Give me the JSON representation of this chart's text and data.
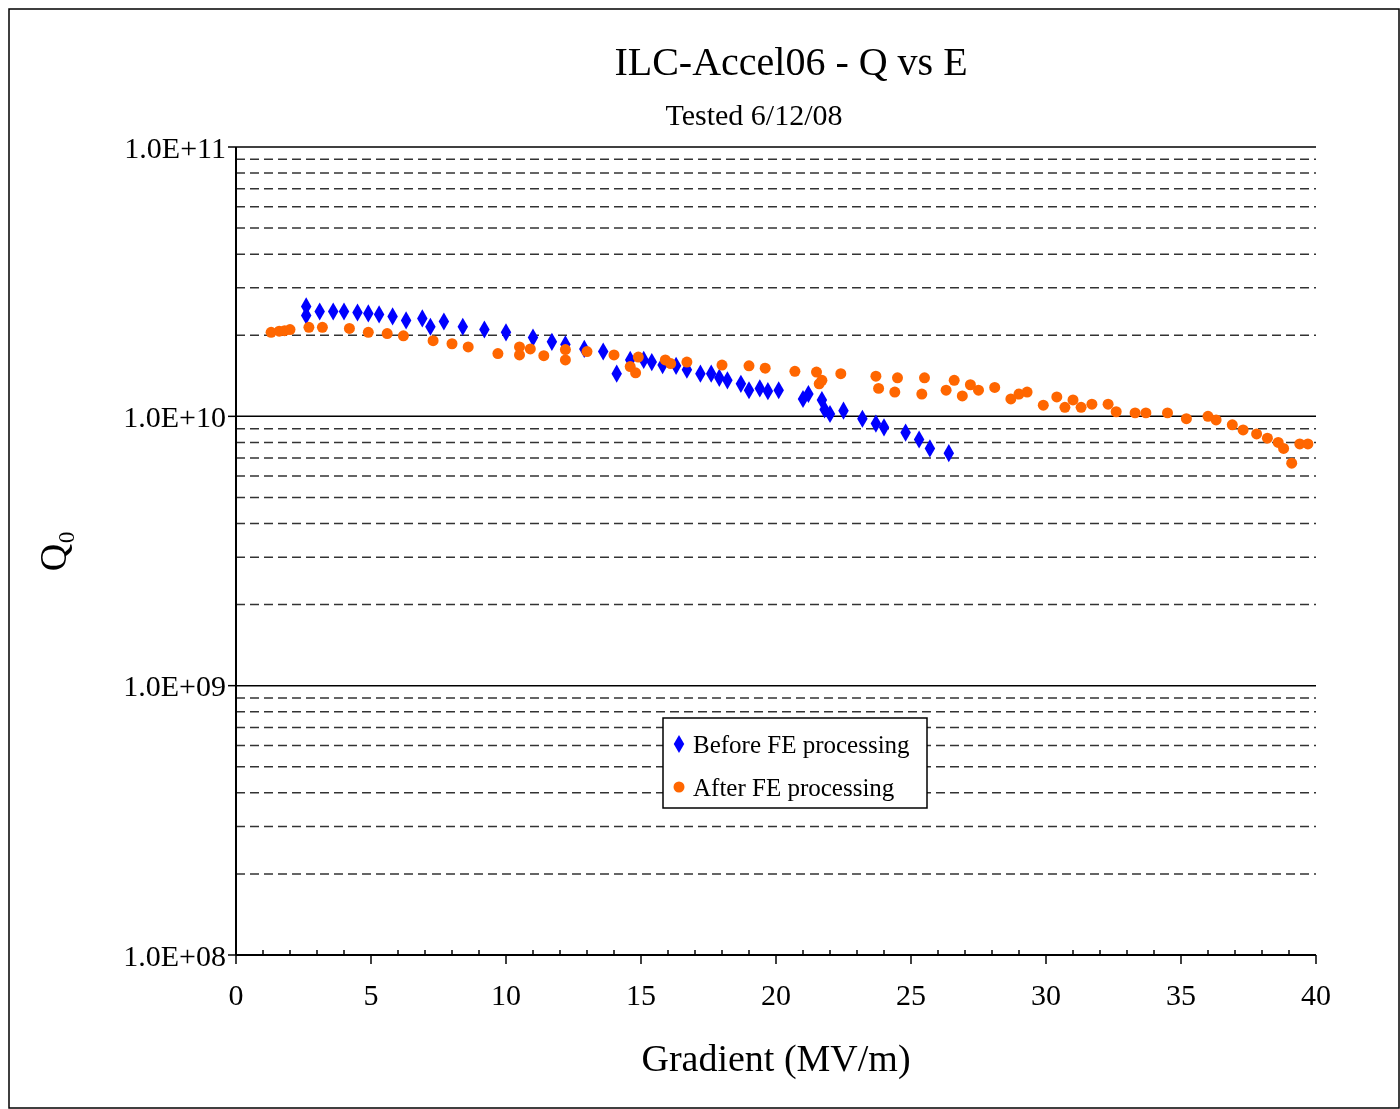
{
  "chart_data": {
    "type": "scatter",
    "title": "ILC-Accel06 - Q vs E",
    "subtitle": "Tested 6/12/08",
    "xlabel": "Gradient (MV/m)",
    "ylabel": "Q₀",
    "log": "y",
    "grid": "y",
    "legend": "bottom",
    "xlim": [
      0,
      40
    ],
    "ylim": [
      100000000.0,
      100000000000.0
    ],
    "xticks": [
      0,
      {
        "value": 1,
        "label": null
      },
      {
        "value": 2,
        "label": null
      },
      {
        "value": 3,
        "label": null
      },
      {
        "value": 4,
        "label": null
      },
      5,
      {
        "value": 6,
        "label": null
      },
      {
        "value": 7,
        "label": null
      },
      {
        "value": 8,
        "label": null
      },
      {
        "value": 9,
        "label": null
      },
      10,
      {
        "value": 11,
        "label": null
      },
      {
        "value": 12,
        "label": null
      },
      {
        "value": 13,
        "label": null
      },
      {
        "value": 14,
        "label": null
      },
      15,
      {
        "value": 16,
        "label": null
      },
      {
        "value": 17,
        "label": null
      },
      {
        "value": 18,
        "label": null
      },
      {
        "value": 19,
        "label": null
      },
      20,
      {
        "value": 21,
        "label": null
      },
      {
        "value": 22,
        "label": null
      },
      {
        "value": 23,
        "label": null
      },
      {
        "value": 24,
        "label": null
      },
      25,
      {
        "value": 26,
        "label": null
      },
      {
        "value": 27,
        "label": null
      },
      {
        "value": 28,
        "label": null
      },
      {
        "value": 29,
        "label": null
      },
      30,
      {
        "value": 31,
        "label": null
      },
      {
        "value": 32,
        "label": null
      },
      {
        "value": 33,
        "label": null
      },
      {
        "value": 34,
        "label": null
      },
      35,
      {
        "value": 36,
        "label": null
      },
      {
        "value": 37,
        "label": null
      },
      {
        "value": 38,
        "label": null
      },
      {
        "value": 39,
        "label": null
      },
      40
    ],
    "yticks": [
      {
        "value": 100000000.0,
        "label": "1.0E+08"
      },
      {
        "value": 1000000000.0,
        "label": "1.0E+09"
      },
      {
        "value": 10000000000.0,
        "label": "1.0E+10"
      },
      {
        "value": 100000000000.0,
        "label": "1.0E+11"
      }
    ],
    "series": [
      {
        "name": "Before FE processing",
        "color": "#0000ff",
        "marker": "diamond",
        "x": [
          2.6,
          2.6,
          3.1,
          3.6,
          4.0,
          4.5,
          4.9,
          5.3,
          5.8,
          6.3,
          6.9,
          7.2,
          7.7,
          8.4,
          9.2,
          10.0,
          11.0,
          11.7,
          12.2,
          12.9,
          13.6,
          14.1,
          14.6,
          15.1,
          15.4,
          15.8,
          16.3,
          16.7,
          17.2,
          17.6,
          17.9,
          18.2,
          18.7,
          19.0,
          19.4,
          19.7,
          20.1,
          21.0,
          21.2,
          21.7,
          21.8,
          22.0,
          22.5,
          23.2,
          23.7,
          24.0,
          24.8,
          25.3,
          25.7,
          26.4
        ],
        "values": [
          25600000000.0,
          23700000000.0,
          24500000000.0,
          24500000000.0,
          24500000000.0,
          24300000000.0,
          24100000000.0,
          23900000000.0,
          23500000000.0,
          22700000000.0,
          23100000000.0,
          21500000000.0,
          22500000000.0,
          21500000000.0,
          21000000000.0,
          20500000000.0,
          19600000000.0,
          18900000000.0,
          18500000000.0,
          17800000000.0,
          17400000000.0,
          14400000000.0,
          16200000000.0,
          16200000000.0,
          15900000000.0,
          15500000000.0,
          15400000000.0,
          14900000000.0,
          14400000000.0,
          14400000000.0,
          13900000000.0,
          13600000000.0,
          13200000000.0,
          12500000000.0,
          12700000000.0,
          12400000000.0,
          12500000000.0,
          11600000000.0,
          12100000000.0,
          11500000000.0,
          10600000000.0,
          10200000000.0,
          10500000000.0,
          9800000000.0,
          9400000000.0,
          9100000000.0,
          8700000000.0,
          8200000000.0,
          7600000000.0,
          7300000000.0
        ]
      },
      {
        "name": "After FE processing",
        "color": "#ff6600",
        "marker": "circle",
        "x": [
          1.3,
          1.6,
          1.8,
          2.0,
          2.7,
          3.2,
          4.2,
          4.9,
          5.6,
          6.2,
          7.3,
          8.0,
          8.6,
          9.7,
          10.5,
          10.5,
          10.9,
          11.4,
          12.2,
          12.2,
          13.0,
          14.0,
          14.6,
          14.8,
          14.9,
          15.9,
          16.1,
          16.7,
          18.0,
          19.0,
          19.6,
          20.7,
          21.5,
          21.6,
          21.7,
          22.4,
          23.7,
          23.8,
          24.5,
          24.4,
          25.4,
          25.5,
          26.3,
          26.6,
          26.9,
          27.2,
          27.5,
          28.1,
          28.7,
          29.0,
          29.3,
          29.9,
          30.4,
          30.7,
          31.0,
          31.3,
          31.7,
          32.3,
          32.6,
          33.3,
          33.7,
          34.5,
          35.2,
          36.0,
          36.3,
          36.9,
          37.3,
          37.8,
          38.2,
          38.6,
          38.8,
          39.1,
          39.4,
          39.7
        ],
        "values": [
          20500000000.0,
          20700000000.0,
          20800000000.0,
          21000000000.0,
          21400000000.0,
          21400000000.0,
          21200000000.0,
          20500000000.0,
          20300000000.0,
          19900000000.0,
          19100000000.0,
          18600000000.0,
          18100000000.0,
          17100000000.0,
          18100000000.0,
          16900000000.0,
          17800000000.0,
          16800000000.0,
          17700000000.0,
          16200000000.0,
          17400000000.0,
          16900000000.0,
          15300000000.0,
          14500000000.0,
          16600000000.0,
          16200000000.0,
          15700000000.0,
          15900000000.0,
          15500000000.0,
          15400000000.0,
          15100000000.0,
          14700000000.0,
          14600000000.0,
          13200000000.0,
          13600000000.0,
          14400000000.0,
          14100000000.0,
          12700000000.0,
          13900000000.0,
          12300000000.0,
          12100000000.0,
          13900000000.0,
          12500000000.0,
          13600000000.0,
          11900000000.0,
          13100000000.0,
          12500000000.0,
          12800000000.0,
          11600000000.0,
          12100000000.0,
          12300000000.0,
          11000000000.0,
          11800000000.0,
          10800000000.0,
          11500000000.0,
          10800000000.0,
          11100000000.0,
          11100000000.0,
          10400000000.0,
          10300000000.0,
          10300000000.0,
          10300000000.0,
          9800000000.0,
          10000000000.0,
          9700000000.0,
          9300000000.0,
          8900000000.0,
          8600000000.0,
          8300000000.0,
          8000000000.0,
          7600000000.0,
          6700000000.0,
          7900000000.0,
          7900000000.0
        ]
      }
    ]
  }
}
